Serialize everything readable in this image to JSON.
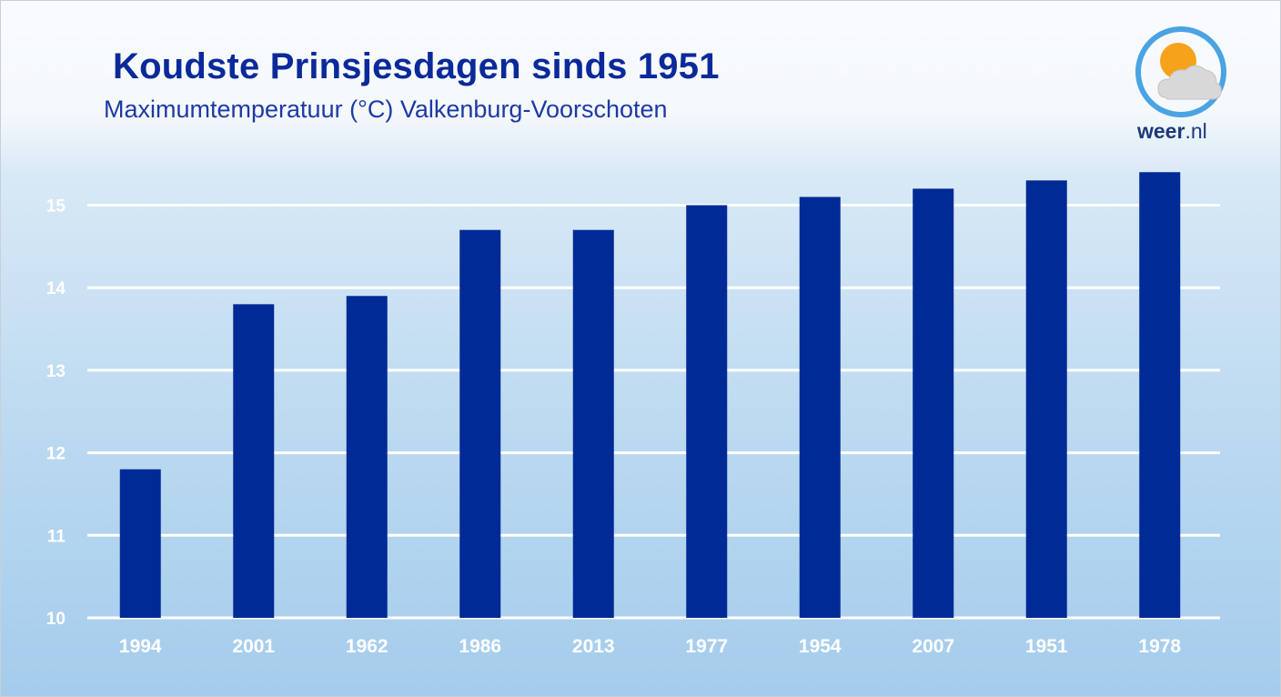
{
  "header": {
    "title": "Koudste Prinsjesdagen sinds 1951",
    "subtitle": "Maximumtemperatuur (°C) Valkenburg-Voorschoten"
  },
  "logo": {
    "brand": "weer",
    "suffix": ".nl",
    "icon": "sun-behind-cloud-icon"
  },
  "colors": {
    "bar": "#002a96",
    "title": "#0a2a9a",
    "grid": "#ffffff"
  },
  "chart_data": {
    "type": "bar",
    "title": "Koudste Prinsjesdagen sinds 1951",
    "subtitle": "Maximumtemperatuur (°C) Valkenburg-Voorschoten",
    "xlabel": "",
    "ylabel": "",
    "categories": [
      "1994",
      "2001",
      "1962",
      "1986",
      "2013",
      "1977",
      "1954",
      "2007",
      "1951",
      "1978"
    ],
    "values": [
      11.8,
      13.8,
      13.9,
      14.7,
      14.7,
      15.0,
      15.1,
      15.2,
      15.3,
      15.4
    ],
    "ylim": [
      10,
      15.5
    ],
    "yticks": [
      10,
      11,
      12,
      13,
      14,
      15
    ],
    "grid": true,
    "legend": "none"
  }
}
